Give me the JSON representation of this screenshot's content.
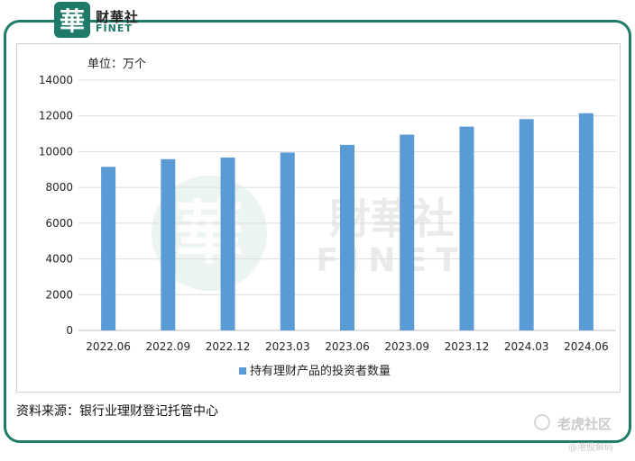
{
  "header": {
    "logo_glyph": "華",
    "brand_cn": "财華社",
    "brand_en": "FINET"
  },
  "watermark": {
    "glyph": "華",
    "cn": "財華社",
    "en": "FINET"
  },
  "chart_data": {
    "type": "bar",
    "unit_label": "单位：万个",
    "categories": [
      "2022.06",
      "2022.09",
      "2022.12",
      "2023.03",
      "2023.06",
      "2023.09",
      "2023.12",
      "2024.03",
      "2024.06"
    ],
    "series": [
      {
        "name": "持有理财产品的投资者数量",
        "values": [
          9150,
          9580,
          9670,
          9950,
          10380,
          10950,
          11400,
          11820,
          12150
        ]
      }
    ],
    "yticks": [
      "0",
      "2000",
      "4000",
      "6000",
      "8000",
      "10000",
      "12000",
      "14000"
    ],
    "ylim": [
      0,
      14000
    ],
    "grid": true,
    "legend_position": "bottom",
    "bar_color": "#5b9bd5"
  },
  "source_text": "资料来源：银行业理财登记托管中心",
  "footer": {
    "brand": "老虎社区",
    "sub": "@港股解码"
  }
}
